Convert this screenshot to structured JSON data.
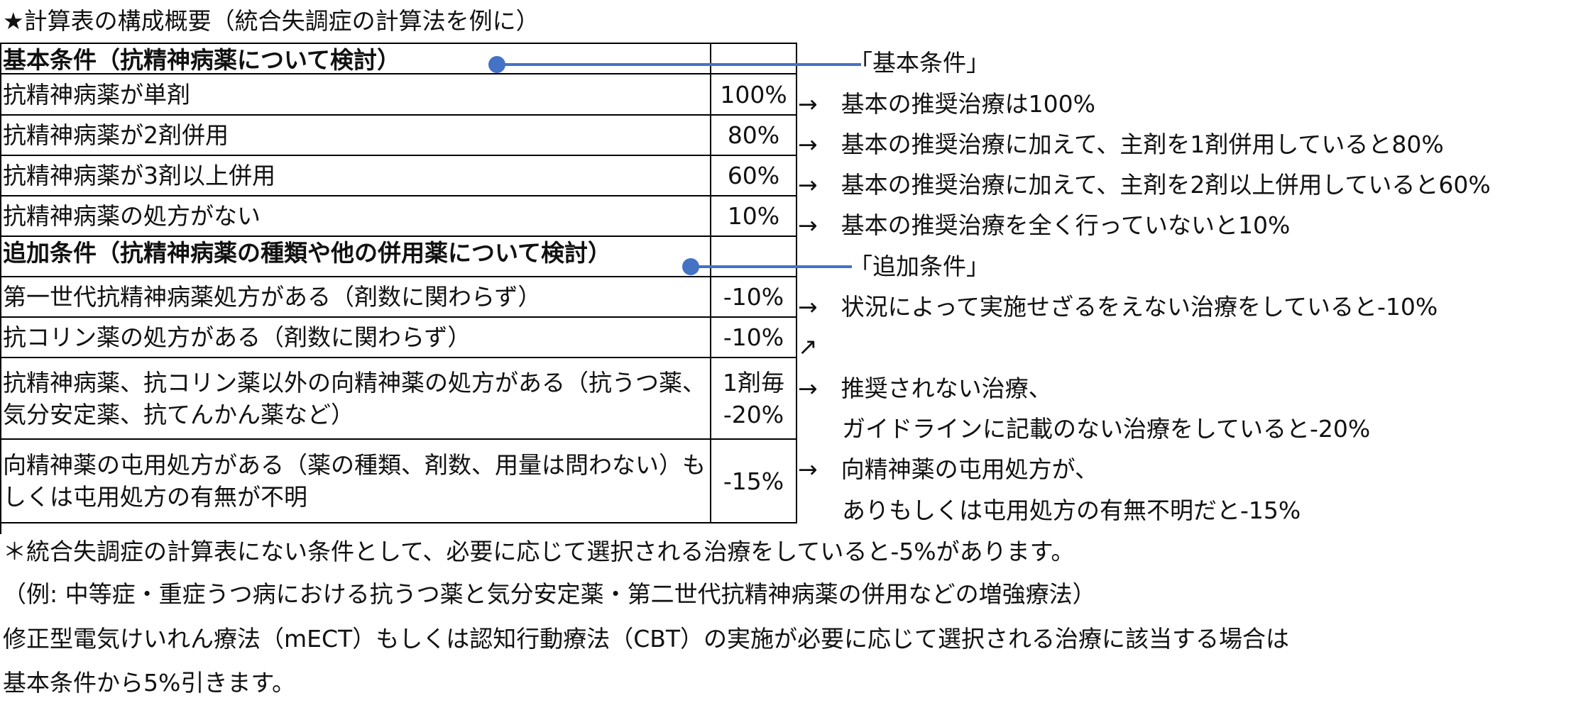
{
  "title": "★計算表の構成概要（統合失調症の計算法を例に）",
  "table": {
    "rows": [
      {
        "type": "header",
        "condition": "基本条件（抗精神病薬について検討）",
        "value": ""
      },
      {
        "type": "row",
        "condition": "抗精神病薬が単剤",
        "value": "100%"
      },
      {
        "type": "row",
        "condition": "抗精神病薬が2剤併用",
        "value": "80%"
      },
      {
        "type": "row",
        "condition": "抗精神病薬が3剤以上併用",
        "value": "60%"
      },
      {
        "type": "row",
        "condition": "抗精神病薬の処方がない",
        "value": "10%"
      },
      {
        "type": "header",
        "condition": "追加条件（抗精神病薬の種類や他の併用薬について検討）",
        "value": ""
      },
      {
        "type": "row",
        "condition": "第一世代抗精神病薬処方がある（剤数に関わらず）",
        "value": "-10%"
      },
      {
        "type": "row",
        "condition": "抗コリン薬の処方がある（剤数に関わらず）",
        "value": "-10%"
      },
      {
        "type": "row",
        "condition": "抗精神病薬、抗コリン薬以外の向精神薬の処方がある（抗うつ薬、気分安定薬、抗てんかん薬など）",
        "value_line1": "1剤毎",
        "value_line2": "-20%"
      },
      {
        "type": "row",
        "condition": "向精神薬の屯用処方がある（薬の種類、剤数、用量は問わない）もしくは屯用処方の有無が不明",
        "value": "-15%"
      }
    ]
  },
  "callouts": {
    "basic": "「基本条件」",
    "additional": "「追加条件」"
  },
  "notes": {
    "n1": "→　基本の推奨治療は100%",
    "n2": "→　基本の推奨治療に加えて、主剤を1剤併用していると80%",
    "n3": "→　基本の推奨治療に加えて、主剤を2剤以上併用していると60%",
    "n4": "→　基本の推奨治療を全く行っていないと10%",
    "n5": "→　状況によって実施せざるをえない治療をしていると-10%",
    "n6_arrow": "↗",
    "n7_line1": "→　推奨されない治療、",
    "n7_line2": "ガイドラインに記載のない治療をしていると-20%",
    "n8_line1": "→　向精神薬の屯用処方が、",
    "n8_line2": "ありもしくは屯用処方の有無不明だと-15%"
  },
  "footnotes": {
    "f1": "＊統合失調症の計算表にない条件として、必要に応じて選択される治療をしていると-5%があります。",
    "f2": "（例: 中等症・重症うつ病における抗うつ薬と気分安定薬・第二世代抗精神病薬の併用などの増強療法）",
    "f3": "修正型電気けいれん療法（mECT）もしくは認知行動療法（CBT）の実施が必要に応じて選択される治療に該当する場合は",
    "f4": "基本条件から5%引きます。"
  },
  "colors": {
    "connector": "#4472c4",
    "border": "#000000",
    "text": "#111111"
  }
}
